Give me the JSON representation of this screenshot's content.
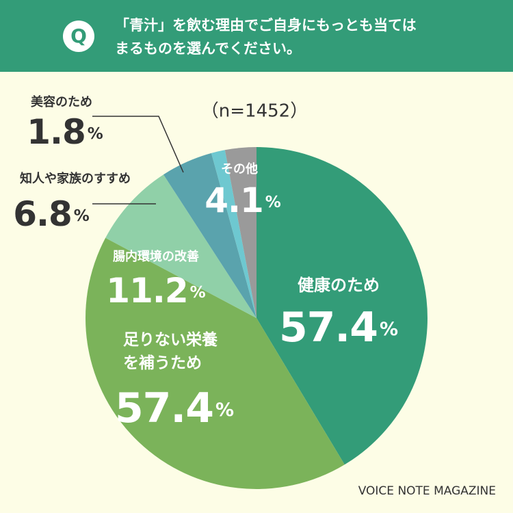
{
  "chart_data": {
    "type": "pie",
    "badge": "Q",
    "title": "「青汁」を飲む理由でご自身にもっとも当てはまるものを選んでください。",
    "subtitle": "（n=1452）",
    "categories": [
      "健康のため",
      "足りない栄養を補うため",
      "腸内環境の改善",
      "知人や家族のすすめ",
      "美容のため",
      "その他"
    ],
    "values": [
      57.4,
      57.4,
      11.2,
      6.8,
      1.8,
      4.1
    ],
    "unit": "%",
    "colors": [
      "#339c78",
      "#7bb35a",
      "#90d0a8",
      "#5aa3ad",
      "#6ec8d0",
      "#9a9a9a"
    ],
    "source": "VOICE NOTE MAGAZINE"
  }
}
